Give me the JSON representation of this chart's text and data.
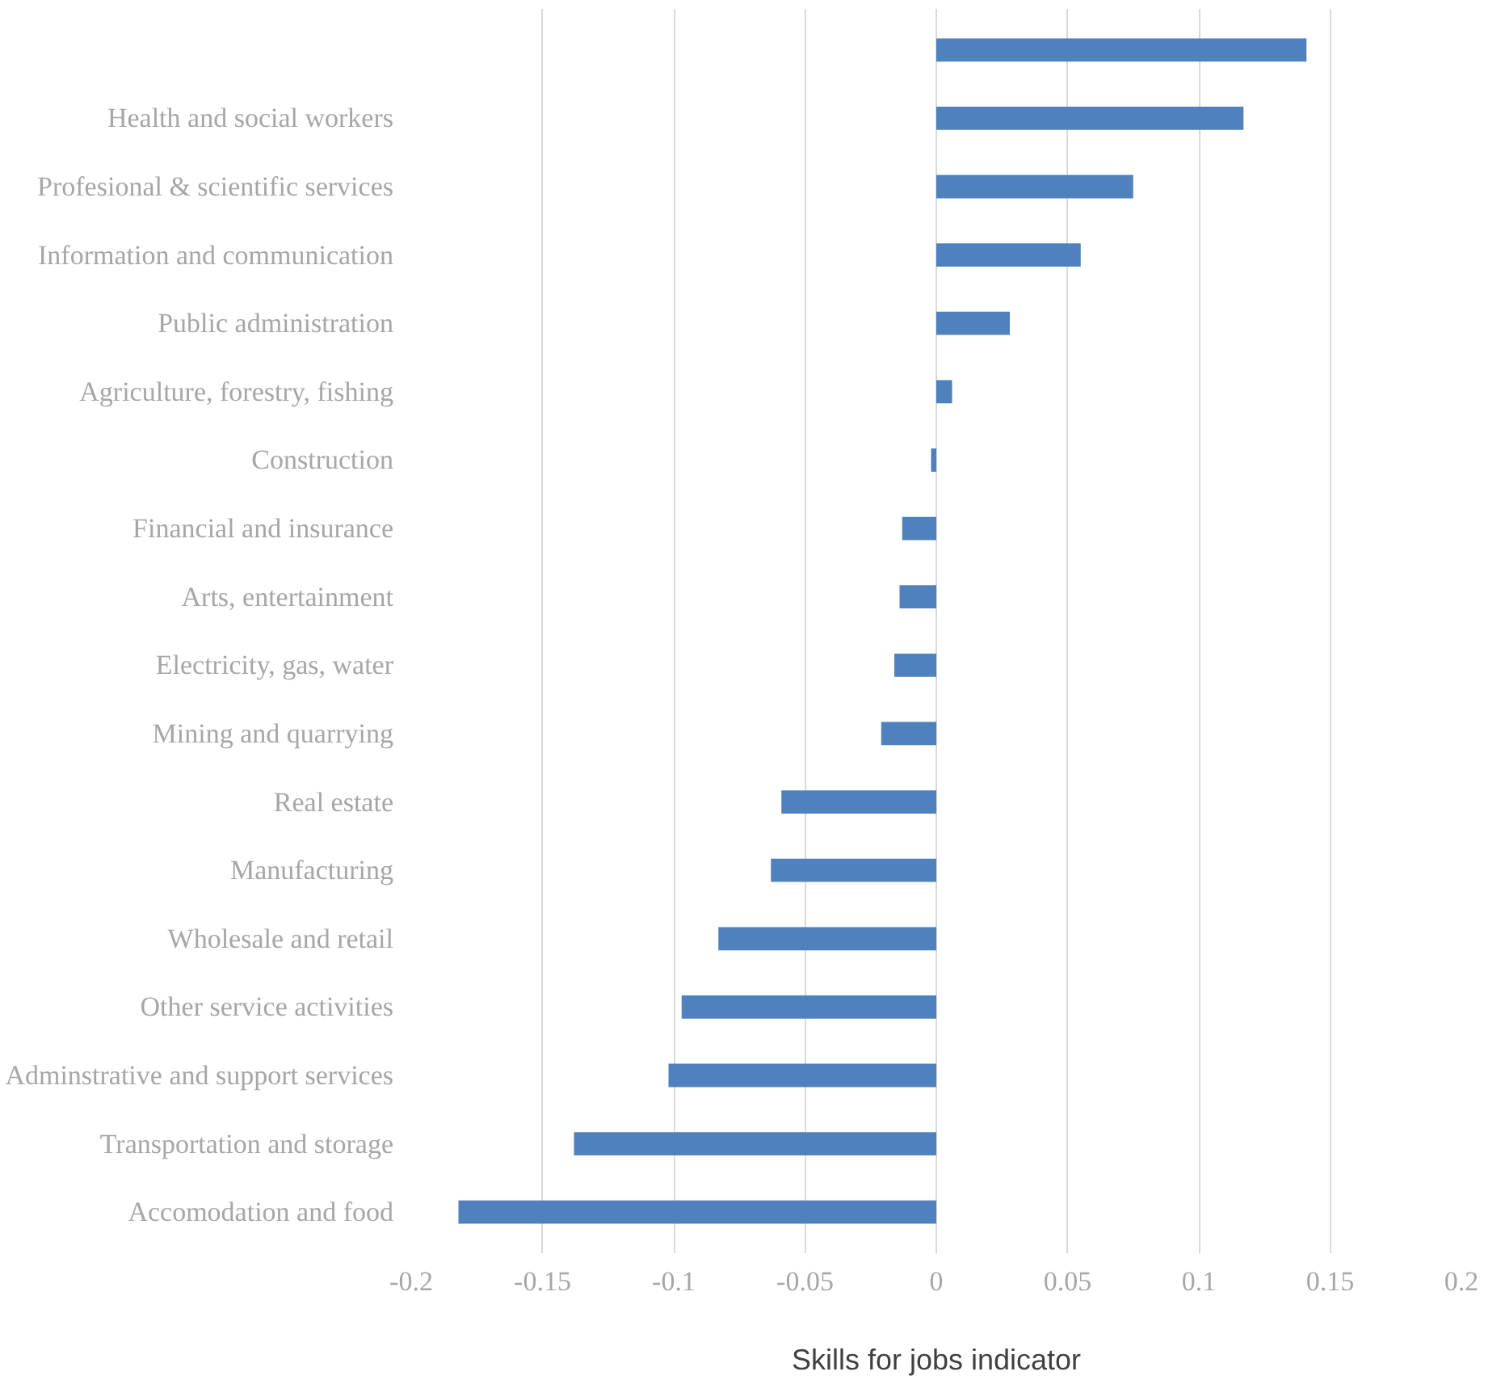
{
  "chart_data": {
    "type": "bar",
    "orientation": "horizontal",
    "xlabel": "Skills for jobs indicator",
    "categories": [
      null,
      "Health and social workers",
      "Profesional & scientific services",
      "Information and communication",
      "Public administration",
      "Agriculture, forestry, fishing",
      "Construction",
      "Financial and insurance",
      "Arts, entertainment",
      "Electricity, gas, water",
      "Mining and quarrying",
      "Real estate",
      "Manufacturing",
      "Wholesale and retail",
      "Other service activities",
      "Adminstrative and support services",
      "Transportation and storage",
      "Accomodation and food"
    ],
    "values": [
      0.141,
      0.117,
      0.075,
      0.055,
      0.028,
      0.006,
      -0.002,
      -0.013,
      -0.014,
      -0.016,
      -0.021,
      -0.059,
      -0.063,
      -0.083,
      -0.097,
      -0.102,
      -0.138,
      -0.182
    ],
    "color": "#4f81bd",
    "xlim": [
      -0.2,
      0.2
    ],
    "xticks": [
      -0.2,
      -0.15,
      -0.1,
      -0.05,
      0,
      0.05,
      0.1,
      0.15,
      0.2
    ],
    "grid": "x"
  }
}
